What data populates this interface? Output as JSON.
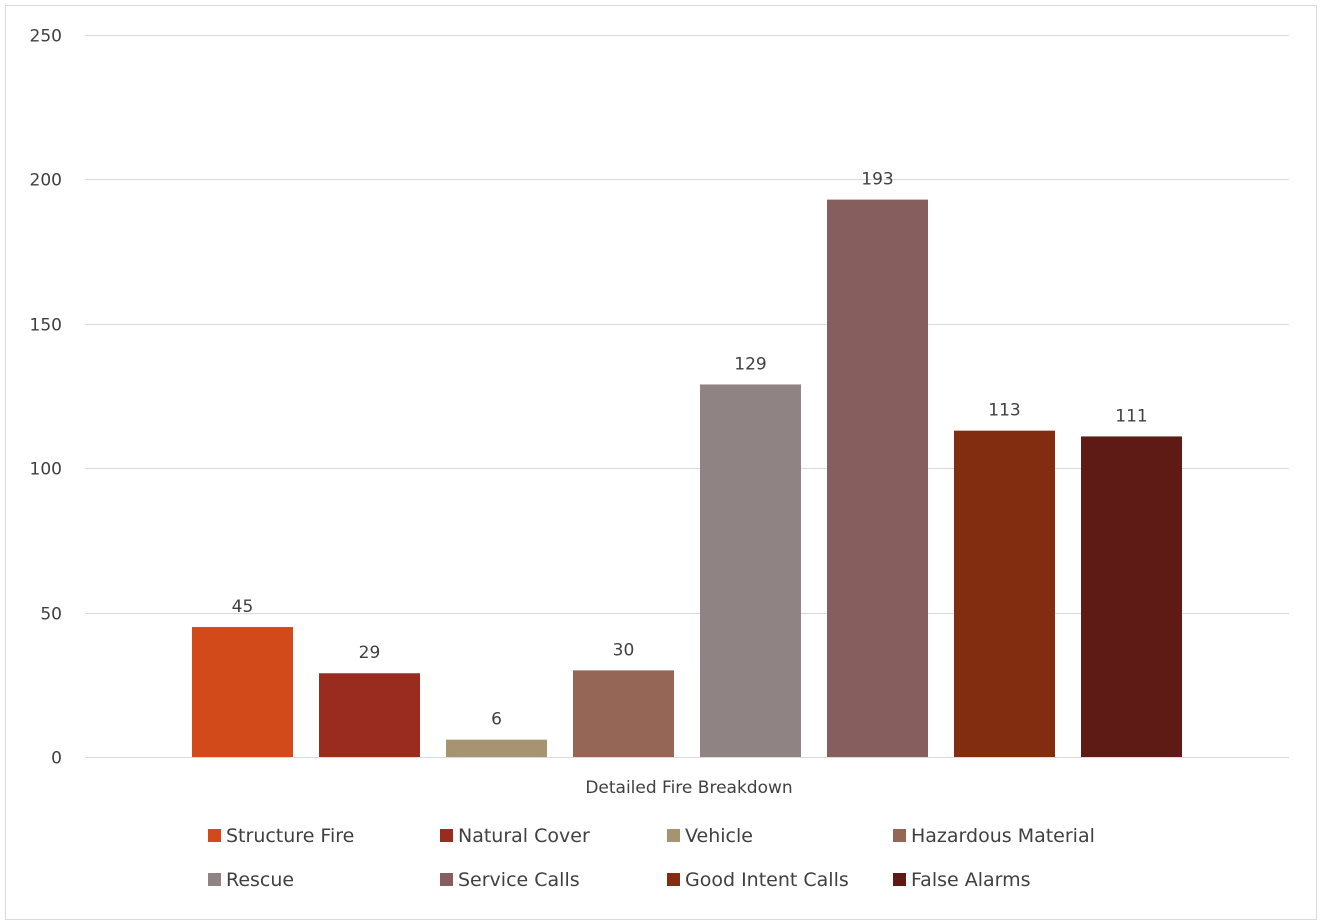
{
  "chart_data": {
    "type": "bar",
    "title": "",
    "xlabel": "",
    "ylabel": "",
    "categories": [
      "Detailed Fire Breakdown"
    ],
    "series": [
      {
        "name": "Structure Fire",
        "values": [
          45
        ],
        "color": "#D24A19"
      },
      {
        "name": "Natural Cover",
        "values": [
          29
        ],
        "color": "#9A2B1F"
      },
      {
        "name": "Vehicle",
        "values": [
          6
        ],
        "color": "#A59372"
      },
      {
        "name": "Hazardous Material",
        "values": [
          30
        ],
        "color": "#956555"
      },
      {
        "name": "Rescue",
        "values": [
          129
        ],
        "color": "#8F8483"
      },
      {
        "name": "Service Calls",
        "values": [
          193
        ],
        "color": "#855E5D"
      },
      {
        "name": "Good Intent Calls",
        "values": [
          113
        ],
        "color": "#822D10"
      },
      {
        "name": "False Alarms",
        "values": [
          111
        ],
        "color": "#5E1B16"
      }
    ],
    "ylim": [
      0,
      250
    ],
    "yticks": [
      0,
      50,
      100,
      150,
      200,
      250
    ],
    "grid": true,
    "legend_position": "bottom",
    "data_labels": true
  }
}
